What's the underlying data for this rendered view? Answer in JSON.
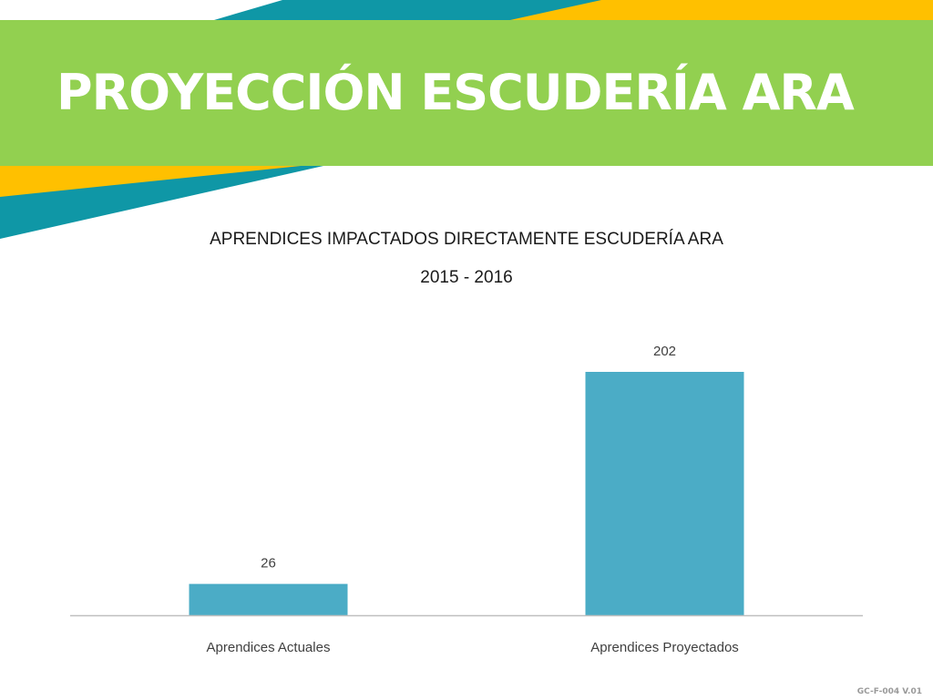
{
  "slide": {
    "title": "PROYECCIÓN ESCUDERÍA ARA",
    "doc_code": "GC-F-004 V.01"
  },
  "colors": {
    "header_green": "#92d050",
    "teal": "#0f97a6",
    "yellow": "#ffc000",
    "bar": "#4bacc6",
    "axis": "#bfbfbf"
  },
  "chart_data": {
    "type": "bar",
    "title": "APRENDICES IMPACTADOS DIRECTAMENTE ESCUDERÍA ARA",
    "subtitle": "2015 - 2016",
    "categories": [
      "Aprendices Actuales",
      "Aprendices Proyectados"
    ],
    "values": [
      26,
      202
    ],
    "data_labels": [
      "26",
      "202"
    ],
    "xlabel": "",
    "ylabel": "",
    "ylim": [
      0,
      202
    ],
    "grid": false,
    "legend": "none"
  }
}
